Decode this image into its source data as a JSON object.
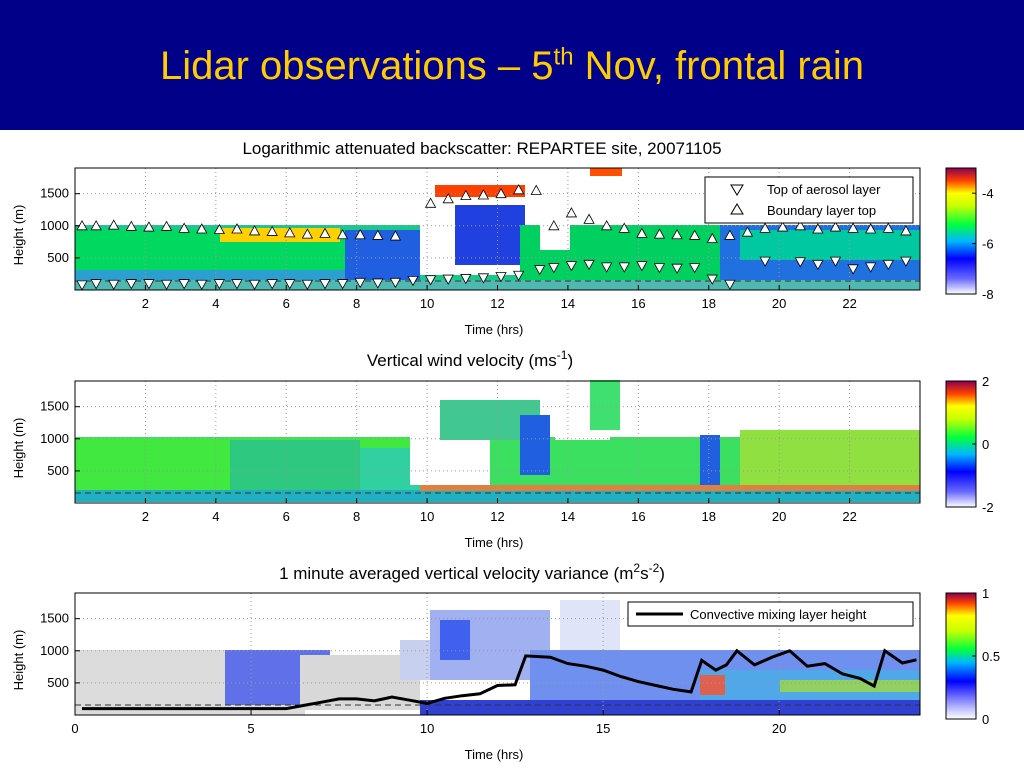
{
  "slide": {
    "title_pre": "Lidar observations – 5",
    "title_sup": "th",
    "title_post": " Nov, frontal rain"
  },
  "colors": {
    "header_bg": "#000088",
    "title": "#ffcc00"
  },
  "chart_data": [
    {
      "type": "heatmap",
      "title": "Logarithmic attenuated backscatter: REPARTEE site, 20071105",
      "xlabel": "Time (hrs)",
      "ylabel": "Height (m)",
      "xlim": [
        0,
        24
      ],
      "ylim": [
        0,
        1900
      ],
      "x_ticks": [
        2,
        4,
        6,
        8,
        10,
        12,
        14,
        16,
        18,
        20,
        22
      ],
      "y_ticks": [
        500,
        1000,
        1500
      ],
      "grid": true,
      "colorbar": {
        "min": -8,
        "max": -3,
        "ticks": [
          -4,
          -6,
          -8
        ]
      },
      "legend": {
        "position": "top-right",
        "entries": [
          "Top of aerosol layer",
          "Boundary layer top"
        ]
      },
      "series": [
        {
          "name": "Top of aerosol layer",
          "marker": "triangle-down",
          "x": [
            0.2,
            0.6,
            1.1,
            1.6,
            2.1,
            2.6,
            3.1,
            3.6,
            4.1,
            4.6,
            5.1,
            5.6,
            6.1,
            6.6,
            7.1,
            7.6,
            8.1,
            8.6,
            9.1,
            9.6,
            10.1,
            10.6,
            11.1,
            11.6,
            12.1,
            12.6,
            13.2,
            13.6,
            14.1,
            14.6,
            15.1,
            15.6,
            16.1,
            16.6,
            17.1,
            17.6,
            18.1,
            18.6,
            19.6,
            20.6,
            21.1,
            21.6,
            22.1,
            22.6,
            23.1,
            23.6
          ],
          "y": [
            80,
            100,
            90,
            100,
            100,
            90,
            100,
            90,
            100,
            100,
            90,
            100,
            100,
            90,
            100,
            100,
            120,
            110,
            120,
            150,
            160,
            170,
            180,
            190,
            210,
            230,
            320,
            350,
            380,
            400,
            360,
            360,
            380,
            350,
            340,
            350,
            170,
            90,
            450,
            440,
            400,
            450,
            330,
            360,
            400,
            450
          ]
        },
        {
          "name": "Boundary layer top",
          "marker": "triangle-up",
          "x": [
            0.2,
            0.6,
            1.1,
            1.6,
            2.1,
            2.6,
            3.1,
            3.6,
            4.1,
            4.6,
            5.1,
            5.6,
            6.1,
            6.6,
            7.1,
            7.6,
            8.1,
            8.6,
            9.1,
            10.1,
            10.6,
            11.1,
            11.6,
            12.1,
            12.6,
            13.1,
            13.6,
            14.1,
            14.6,
            15.1,
            15.6,
            16.1,
            16.6,
            17.1,
            17.6,
            18.1,
            18.6,
            19.1,
            19.6,
            20.1,
            20.6,
            21.1,
            21.6,
            22.1,
            22.6,
            23.1,
            23.6
          ],
          "y": [
            1000,
            1000,
            1010,
            990,
            980,
            990,
            960,
            950,
            940,
            950,
            920,
            910,
            890,
            870,
            880,
            860,
            860,
            850,
            840,
            1350,
            1420,
            1470,
            1480,
            1500,
            1560,
            1550,
            1000,
            1200,
            1100,
            1000,
            960,
            880,
            870,
            860,
            850,
            800,
            850,
            900,
            960,
            980,
            1000,
            950,
            980,
            960,
            950,
            960,
            920
          ]
        }
      ]
    },
    {
      "type": "heatmap",
      "title_pre": "Vertical wind velocity (ms",
      "title_sup": "-1",
      "title_post": ")",
      "xlabel": "Time (hrs)",
      "ylabel": "Height (m)",
      "xlim": [
        0,
        24
      ],
      "ylim": [
        0,
        1900
      ],
      "x_ticks": [
        2,
        4,
        6,
        8,
        10,
        12,
        14,
        16,
        18,
        20,
        22
      ],
      "y_ticks": [
        500,
        1000,
        1500
      ],
      "grid": true,
      "colorbar": {
        "min": -2,
        "max": 2,
        "ticks": [
          2,
          0,
          -2
        ]
      }
    },
    {
      "type": "heatmap",
      "title_pre": "1 minute averaged vertical velocity variance (m",
      "title_sup1": "2",
      "title_mid": "s",
      "title_sup2": "-2",
      "title_post": ")",
      "xlabel": "Time (hrs)",
      "ylabel": "Height (m)",
      "xlim": [
        0,
        24
      ],
      "ylim": [
        0,
        1900
      ],
      "x_ticks": [
        0,
        5,
        10,
        15,
        20
      ],
      "y_ticks": [
        500,
        1000,
        1500
      ],
      "grid": true,
      "colorbar": {
        "min": 0,
        "max": 1,
        "ticks": [
          1,
          0.5,
          0
        ]
      },
      "legend": {
        "position": "top-right",
        "entries": [
          "Convective mixing layer height"
        ]
      },
      "series": [
        {
          "name": "Convective mixing layer height",
          "x": [
            0.2,
            1,
            2,
            3,
            4,
            5,
            6,
            6.5,
            7,
            7.5,
            8,
            8.5,
            9,
            9.5,
            10,
            10.5,
            11,
            11.5,
            12,
            12.5,
            12.8,
            13.5,
            14,
            14.5,
            15,
            15.5,
            16,
            16.5,
            17,
            17.5,
            17.8,
            18.2,
            18.5,
            18.8,
            19.3,
            19.8,
            20.3,
            20.8,
            21.3,
            21.8,
            22.3,
            22.7,
            23,
            23.5,
            23.9
          ],
          "y": [
            100,
            100,
            100,
            100,
            100,
            100,
            100,
            150,
            200,
            250,
            250,
            220,
            280,
            230,
            180,
            260,
            300,
            330,
            460,
            470,
            920,
            900,
            800,
            760,
            700,
            600,
            520,
            460,
            400,
            360,
            850,
            700,
            780,
            1000,
            780,
            900,
            1000,
            760,
            800,
            640,
            570,
            450,
            1000,
            810,
            860
          ]
        }
      ]
    }
  ]
}
